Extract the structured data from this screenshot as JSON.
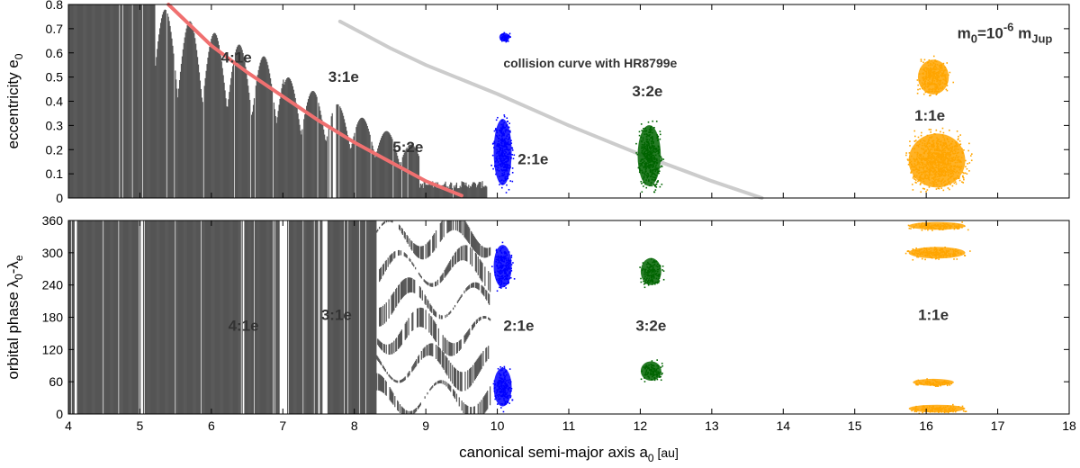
{
  "chart_data": {
    "type": "scatter",
    "x_axis": {
      "label": "canonical semi-major axis a",
      "label_sub": "0",
      "label_unit": " [au]",
      "range": [
        4,
        18
      ],
      "ticks": [
        4,
        5,
        6,
        7,
        8,
        9,
        10,
        11,
        12,
        13,
        14,
        15,
        16,
        17,
        18
      ]
    },
    "top_panel": {
      "y_label_main": "eccentricity e",
      "y_label_sub": "0",
      "y_range": [
        0,
        0.8
      ],
      "y_ticks": [
        "0",
        "0.1",
        "0.2",
        "0.3",
        "0.4",
        "0.5",
        "0.6",
        "0.7",
        "0.8"
      ],
      "mass_label": {
        "base": "m",
        "base_sub": "0",
        "eq": "=10",
        "exp": "-6",
        "unit": " m",
        "unit_sub": "Jup"
      },
      "curves": [
        {
          "name": "red-curve",
          "color": "#f07070",
          "points": [
            [
              5.4,
              0.8
            ],
            [
              6,
              0.63
            ],
            [
              6.5,
              0.52
            ],
            [
              7,
              0.42
            ],
            [
              7.5,
              0.32
            ],
            [
              8,
              0.23
            ],
            [
              8.5,
              0.15
            ],
            [
              9,
              0.07
            ],
            [
              9.5,
              0.01
            ]
          ]
        },
        {
          "name": "collision-curve",
          "color": "#cccccc",
          "points": [
            [
              7.8,
              0.73
            ],
            [
              8.5,
              0.62
            ],
            [
              9,
              0.55
            ],
            [
              10,
              0.43
            ],
            [
              11,
              0.3
            ],
            [
              12,
              0.18
            ],
            [
              13,
              0.07
            ],
            [
              13.7,
              0
            ]
          ]
        }
      ],
      "annotations": [
        {
          "text": "4:1e",
          "x": 6.35,
          "y": 0.56
        },
        {
          "text": "3:1e",
          "x": 7.85,
          "y": 0.48
        },
        {
          "text": "5:2e",
          "x": 8.75,
          "y": 0.19
        },
        {
          "text": "2:1e",
          "x": 10.5,
          "y": 0.14
        },
        {
          "text": "3:2e",
          "x": 12.1,
          "y": 0.42
        },
        {
          "text": "1:1e",
          "x": 16.05,
          "y": 0.32
        },
        {
          "text": "collision curve with HR8799e",
          "x": 11.3,
          "y": 0.54
        }
      ],
      "clusters": [
        {
          "name": "2:1e",
          "color": "#0000ff",
          "ranges": [
            [
              9.9,
              10.25,
              0,
              0.38
            ]
          ],
          "aux": [
            [
              10.0,
              10.2,
              0.64,
              0.69
            ]
          ]
        },
        {
          "name": "3:2e",
          "color": "#006400",
          "ranges": [
            [
              11.9,
              12.35,
              0,
              0.35
            ]
          ]
        },
        {
          "name": "1:1e",
          "color": "#ffa500",
          "ranges": [
            [
              15.6,
              16.7,
              0,
              0.31
            ],
            [
              15.8,
              16.4,
              0.4,
              0.6
            ]
          ]
        }
      ]
    },
    "bottom_panel": {
      "y_label_main": "orbital phase λ",
      "y_label_sub1": "0",
      "y_label_mid": "-λ",
      "y_label_sub2": "e",
      "y_range": [
        0,
        360
      ],
      "y_ticks": [
        "0",
        "60",
        "120",
        "180",
        "240",
        "300",
        "360"
      ],
      "annotations": [
        {
          "text": "4:1e",
          "x": 6.45,
          "y": 155
        },
        {
          "text": "3:1e",
          "x": 7.75,
          "y": 175
        },
        {
          "text": "2:1e",
          "x": 10.3,
          "y": 155
        },
        {
          "text": "3:2e",
          "x": 12.15,
          "y": 155
        },
        {
          "text": "1:1e",
          "x": 16.1,
          "y": 175
        }
      ],
      "clusters": [
        {
          "name": "2:1e",
          "color": "#0000ff",
          "ranges": [
            [
              9.9,
              10.25,
              220,
              330
            ],
            [
              9.9,
              10.25,
              0,
              100
            ]
          ]
        },
        {
          "name": "3:2e",
          "color": "#006400",
          "ranges": [
            [
              11.95,
              12.35,
              230,
              300
            ],
            [
              11.95,
              12.35,
              55,
              105
            ]
          ]
        },
        {
          "name": "1:1e",
          "color": "#ffa500",
          "ranges": [
            [
              15.6,
              16.7,
              285,
              315
            ],
            [
              15.6,
              16.7,
              340,
              360
            ],
            [
              15.7,
              16.5,
              50,
              68
            ],
            [
              15.6,
              16.7,
              0,
              20
            ]
          ]
        }
      ]
    }
  }
}
